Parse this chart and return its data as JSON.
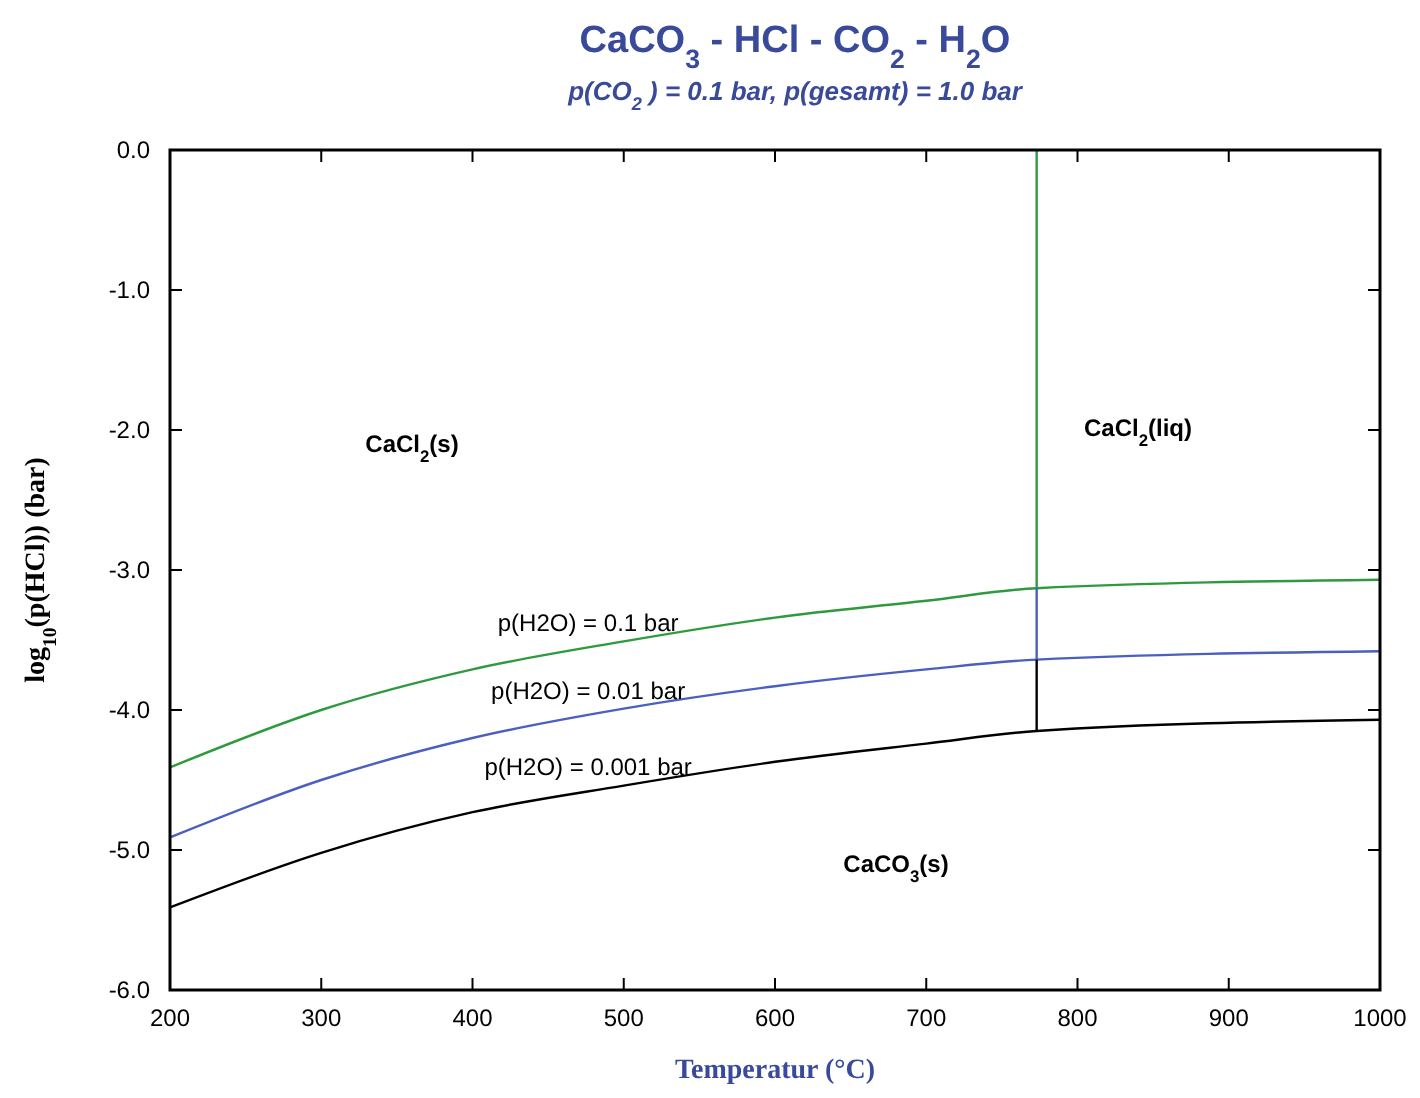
{
  "chart_data": {
    "type": "line",
    "title": "CaCO$_{3}$ - HCl - CO$_{2}$ - H$_{2}$O",
    "subtitle": "p(CO$_{2}$ ) = 0.1 bar,  p(gesamt) = 1.0 bar",
    "xlabel": "Temperatur (°C)",
    "ylabel": "log$_{10}$(p(HCl)) (bar)",
    "xlim": [
      200,
      1000
    ],
    "ylim": [
      -6,
      0
    ],
    "xticks": [
      200,
      300,
      400,
      500,
      600,
      700,
      800,
      900,
      1000
    ],
    "yticks": [
      {
        "value": 0,
        "label": "0.0"
      },
      {
        "value": -1,
        "label": "-1.0"
      },
      {
        "value": -2,
        "label": "-2.0"
      },
      {
        "value": -3,
        "label": "-3.0"
      },
      {
        "value": -4,
        "label": "-4.0"
      },
      {
        "value": -5,
        "label": "-5.0"
      },
      {
        "value": -6,
        "label": "-6.0"
      }
    ],
    "grid": false,
    "marker": "none",
    "line_style": "solid",
    "series": [
      {
        "name": "p(H2O) = 0.1 bar",
        "color": "#2e9a3e",
        "x": [
          200,
          300,
          400,
          500,
          600,
          700,
          773,
          1000
        ],
        "values": [
          -4.41,
          -4.0,
          -3.71,
          -3.51,
          -3.34,
          -3.22,
          -3.13,
          -3.07
        ]
      },
      {
        "name": "p(H2O) = 0.01 bar",
        "color": "#4a5fc0",
        "x": [
          200,
          300,
          400,
          500,
          600,
          700,
          773,
          1000
        ],
        "values": [
          -4.91,
          -4.5,
          -4.2,
          -3.99,
          -3.83,
          -3.71,
          -3.64,
          -3.58
        ]
      },
      {
        "name": "p(H2O) = 0.001 bar",
        "color": "#000000",
        "x": [
          200,
          300,
          400,
          500,
          600,
          700,
          773,
          1000
        ],
        "values": [
          -5.41,
          -5.02,
          -4.73,
          -4.54,
          -4.37,
          -4.24,
          -4.15,
          -4.07
        ]
      },
      {
        "color": "#2e9a3e",
        "x": [
          773,
          773
        ],
        "values": [
          0,
          -3.13
        ]
      },
      {
        "color": "#4a5fc0",
        "x": [
          773,
          773
        ],
        "values": [
          -3.13,
          -3.64
        ]
      },
      {
        "color": "#000000",
        "x": [
          773,
          773
        ],
        "values": [
          -3.64,
          -4.15
        ]
      }
    ],
    "annotations": [
      "CaCl$_{2}$(s)",
      "CaCl$_{2}$(liq)",
      "CaCO$_{3}$(s)"
    ]
  }
}
